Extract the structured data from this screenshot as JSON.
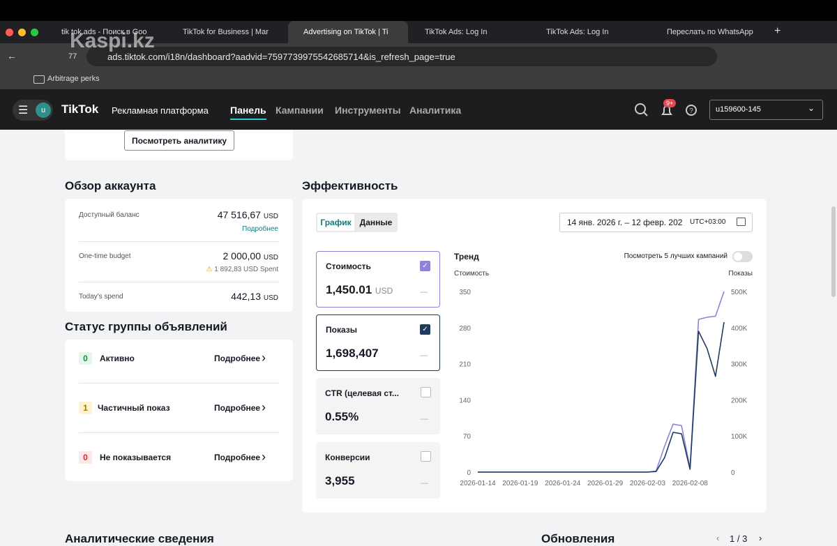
{
  "browser": {
    "tabs": [
      "tik tok ads - Поиск в Goo",
      "TikTok for Business | Mar",
      "Advertising on TikTok | Ti",
      "TikTok Ads: Log In",
      "TikTok Ads: Log In",
      "Переслать по WhatsApp"
    ],
    "counter": "77",
    "url": "ads.tiktok.com/i18n/dashboard?aadvid=7597739975542685714&is_refresh_page=true",
    "bookmark": "Arbitrage perks",
    "watermark": "Kaspi.kz"
  },
  "app_header": {
    "avatar": "u",
    "logo": "TikTok",
    "subtitle": "Рекламная платформа",
    "nav": [
      "Панель",
      "Кампании",
      "Инструменты",
      "Аналитика"
    ],
    "badge": "9+",
    "account": "u159600-145"
  },
  "analytics_button": "Посмотреть аналитику",
  "account_overview": {
    "title": "Обзор аккаунта",
    "rows": [
      {
        "label": "Доступный баланс",
        "value": "47 516,67",
        "unit": "USD",
        "link": "Подробнее"
      },
      {
        "label": "One-time budget",
        "value": "2 000,00",
        "unit": "USD",
        "note": "1 892,83 USD Spent"
      },
      {
        "label": "Today's spend",
        "value": "442,13",
        "unit": "USD"
      }
    ]
  },
  "ad_group_status": {
    "title": "Статус группы объявлений",
    "rows": [
      {
        "count": "0",
        "label": "Активно",
        "link": "Подробнее"
      },
      {
        "count": "1",
        "label": "Частичный показ",
        "link": "Подробнее"
      },
      {
        "count": "0",
        "label": "Не показывается",
        "link": "Подробнее"
      }
    ]
  },
  "performance": {
    "title": "Эффективность",
    "tabs": [
      "График",
      "Данные"
    ],
    "date_range": "14 янв. 2026 г. – 12 февр. 202",
    "timezone": "UTC+03:00",
    "metrics": [
      {
        "name": "Стоимость",
        "value": "1,450.01",
        "unit": "USD",
        "delta": "—"
      },
      {
        "name": "Показы",
        "value": "1,698,407",
        "delta": "—"
      },
      {
        "name": "CTR (целевая ст...",
        "value": "0.55%",
        "delta": "—"
      },
      {
        "name": "Конверсии",
        "value": "3,955",
        "delta": "—"
      }
    ],
    "trend_title": "Тренд",
    "top_campaigns": "Посмотреть 5 лучших кампаний",
    "chart": {
      "type": "line",
      "categories": [
        "2026-01-14",
        null,
        null,
        null,
        null,
        "2026-01-19",
        null,
        null,
        null,
        null,
        "2026-01-24",
        null,
        null,
        null,
        null,
        "2026-01-29",
        null,
        null,
        null,
        null,
        "2026-02-03",
        null,
        null,
        null,
        null,
        "2026-02-08",
        null,
        null,
        null,
        null
      ],
      "ylim": [
        0,
        350
      ],
      "yticks": [
        0,
        70,
        140,
        210,
        280,
        350
      ],
      "y2lim": [
        0,
        500000
      ],
      "y2ticks": [
        0,
        {
          "value": 100000,
          "label": "100K"
        },
        {
          "value": 200000,
          "label": "200K"
        },
        {
          "value": 300000,
          "label": "300K"
        },
        {
          "value": 400000,
          "label": "400K"
        },
        {
          "value": 500000,
          "label": "500K"
        }
      ],
      "series": [
        {
          "name": "Стоимость",
          "color": "#8b84d7",
          "values": [
            0,
            0,
            0,
            0,
            0,
            0,
            0,
            0,
            0,
            0,
            0,
            0,
            0,
            0,
            0,
            0,
            0,
            0,
            0,
            0,
            0,
            2,
            50,
            93,
            90,
            8,
            296,
            300,
            302,
            350
          ]
        },
        {
          "name": "Показы",
          "color": "#1f3a5f",
          "axis": "y2",
          "values": [
            0,
            0,
            0,
            0,
            0,
            0,
            0,
            0,
            0,
            0,
            0,
            0,
            0,
            0,
            0,
            0,
            0,
            0,
            0,
            0,
            0,
            1500,
            40000,
            110000,
            106000,
            8000,
            390000,
            342000,
            265000,
            415000
          ]
        }
      ]
    }
  },
  "footer": {
    "insights": "Аналитические сведения",
    "updates": "Обновления",
    "page": "1",
    "separator": "/",
    "pages": "3"
  }
}
